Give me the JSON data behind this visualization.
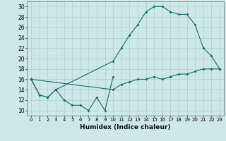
{
  "xlabel": "Humidex (Indice chaleur)",
  "bg_color": "#cce8e8",
  "grid_color": "#b8d8d8",
  "line_color": "#1a6b6b",
  "xlim": [
    -0.5,
    23.5
  ],
  "ylim": [
    9,
    31
  ],
  "xticks": [
    0,
    1,
    2,
    3,
    4,
    5,
    6,
    7,
    8,
    9,
    10,
    11,
    12,
    13,
    14,
    15,
    16,
    17,
    18,
    19,
    20,
    21,
    22,
    23
  ],
  "yticks": [
    10,
    12,
    14,
    16,
    18,
    20,
    22,
    24,
    26,
    28,
    30
  ],
  "line1_x": [
    0,
    1,
    2,
    3,
    4,
    5,
    6,
    7,
    8,
    9,
    10
  ],
  "line1_y": [
    16,
    13,
    12.5,
    14,
    12,
    11,
    11,
    10,
    12.5,
    10,
    16.5
  ],
  "line2_x": [
    0,
    1,
    2,
    3,
    10,
    11,
    12,
    13,
    14,
    15,
    16,
    17,
    18,
    19,
    20,
    21,
    22,
    23
  ],
  "line2_y": [
    16,
    13,
    12.5,
    14,
    19.5,
    22,
    24.5,
    26.5,
    29,
    30,
    30,
    29,
    28.5,
    28.5,
    26.5,
    22,
    20.5,
    18
  ],
  "line3_x": [
    0,
    10,
    11,
    12,
    13,
    14,
    15,
    16,
    17,
    18,
    19,
    20,
    21,
    22,
    23
  ],
  "line3_y": [
    16,
    14,
    15,
    15.5,
    16,
    16,
    16.5,
    16,
    16.5,
    17,
    17,
    17.5,
    18,
    18,
    18
  ],
  "figsize": [
    3.2,
    2.0
  ],
  "dpi": 100
}
